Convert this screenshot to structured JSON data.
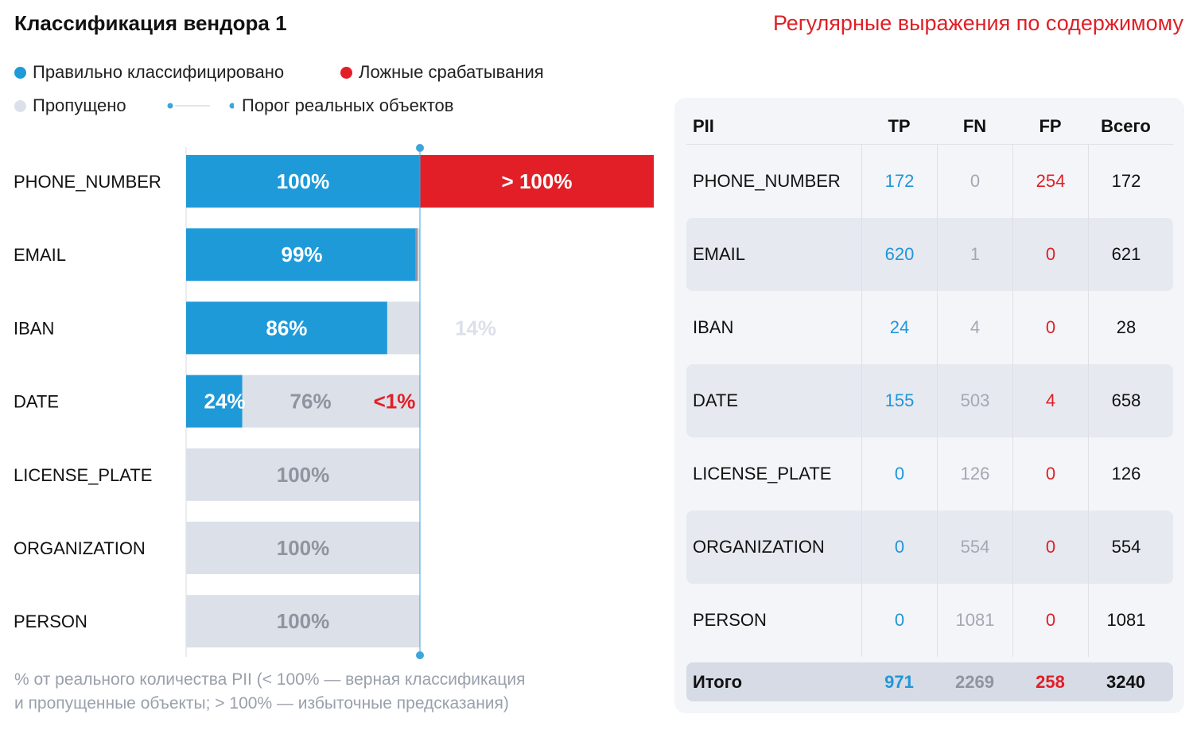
{
  "title": "Классификация вендора 1",
  "subtitle": "Регулярные выражения по содержимому",
  "legend": {
    "correct": "Правильно классифицировано",
    "false_pos": "Ложные срабатывания",
    "missed": "Пропущено",
    "threshold": "Порог реальных объектов"
  },
  "colors": {
    "correct": "#1e9ad9",
    "false_pos": "#e21f26",
    "missed": "#dce0e8",
    "missed_label": "#8f94a0",
    "threshold": "#3da5dd"
  },
  "footnote": {
    "line1": "% от реального количества PII (< 100% — верная классификация",
    "line2": "и пропущенные объекты; > 100% — избыточные предсказания)"
  },
  "chart_data": {
    "type": "bar",
    "orientation": "horizontal",
    "stacked": true,
    "unit": "%",
    "categories": [
      "PHONE_NUMBER",
      "EMAIL",
      "IBAN",
      "DATE",
      "LICENSE_PLATE",
      "ORGANIZATION",
      "PERSON"
    ],
    "series": [
      {
        "name": "Правильно классифицировано",
        "values": [
          100,
          99,
          86,
          24,
          0,
          0,
          0
        ],
        "labels": [
          "100%",
          "99%",
          "86%",
          "24%",
          "",
          "",
          ""
        ]
      },
      {
        "name": "Пропущено",
        "values": [
          0,
          1,
          14,
          76,
          100,
          100,
          100
        ],
        "labels": [
          "",
          "",
          "14%",
          "76%",
          "100%",
          "100%",
          "100%"
        ]
      },
      {
        "name": "Ложные срабатывания",
        "values": [
          100,
          0,
          0,
          0.6,
          0,
          0,
          0
        ],
        "labels": [
          "> 100%",
          "",
          "",
          "<1%",
          "",
          "",
          ""
        ]
      }
    ],
    "threshold": 100
  },
  "table": {
    "headers": [
      "PII",
      "TP",
      "FN",
      "FP",
      "Всего"
    ],
    "rows": [
      [
        "PHONE_NUMBER",
        "172",
        "0",
        "254",
        "172"
      ],
      [
        "EMAIL",
        "620",
        "1",
        "0",
        "621"
      ],
      [
        "IBAN",
        "24",
        "4",
        "0",
        "28"
      ],
      [
        "DATE",
        "155",
        "503",
        "4",
        "658"
      ],
      [
        "LICENSE_PLATE",
        "0",
        "126",
        "0",
        "126"
      ],
      [
        "ORGANIZATION",
        "0",
        "554",
        "0",
        "554"
      ],
      [
        "PERSON",
        "0",
        "1081",
        "0",
        "1081"
      ]
    ],
    "total": [
      "Итого",
      "971",
      "2269",
      "258",
      "3240"
    ]
  }
}
